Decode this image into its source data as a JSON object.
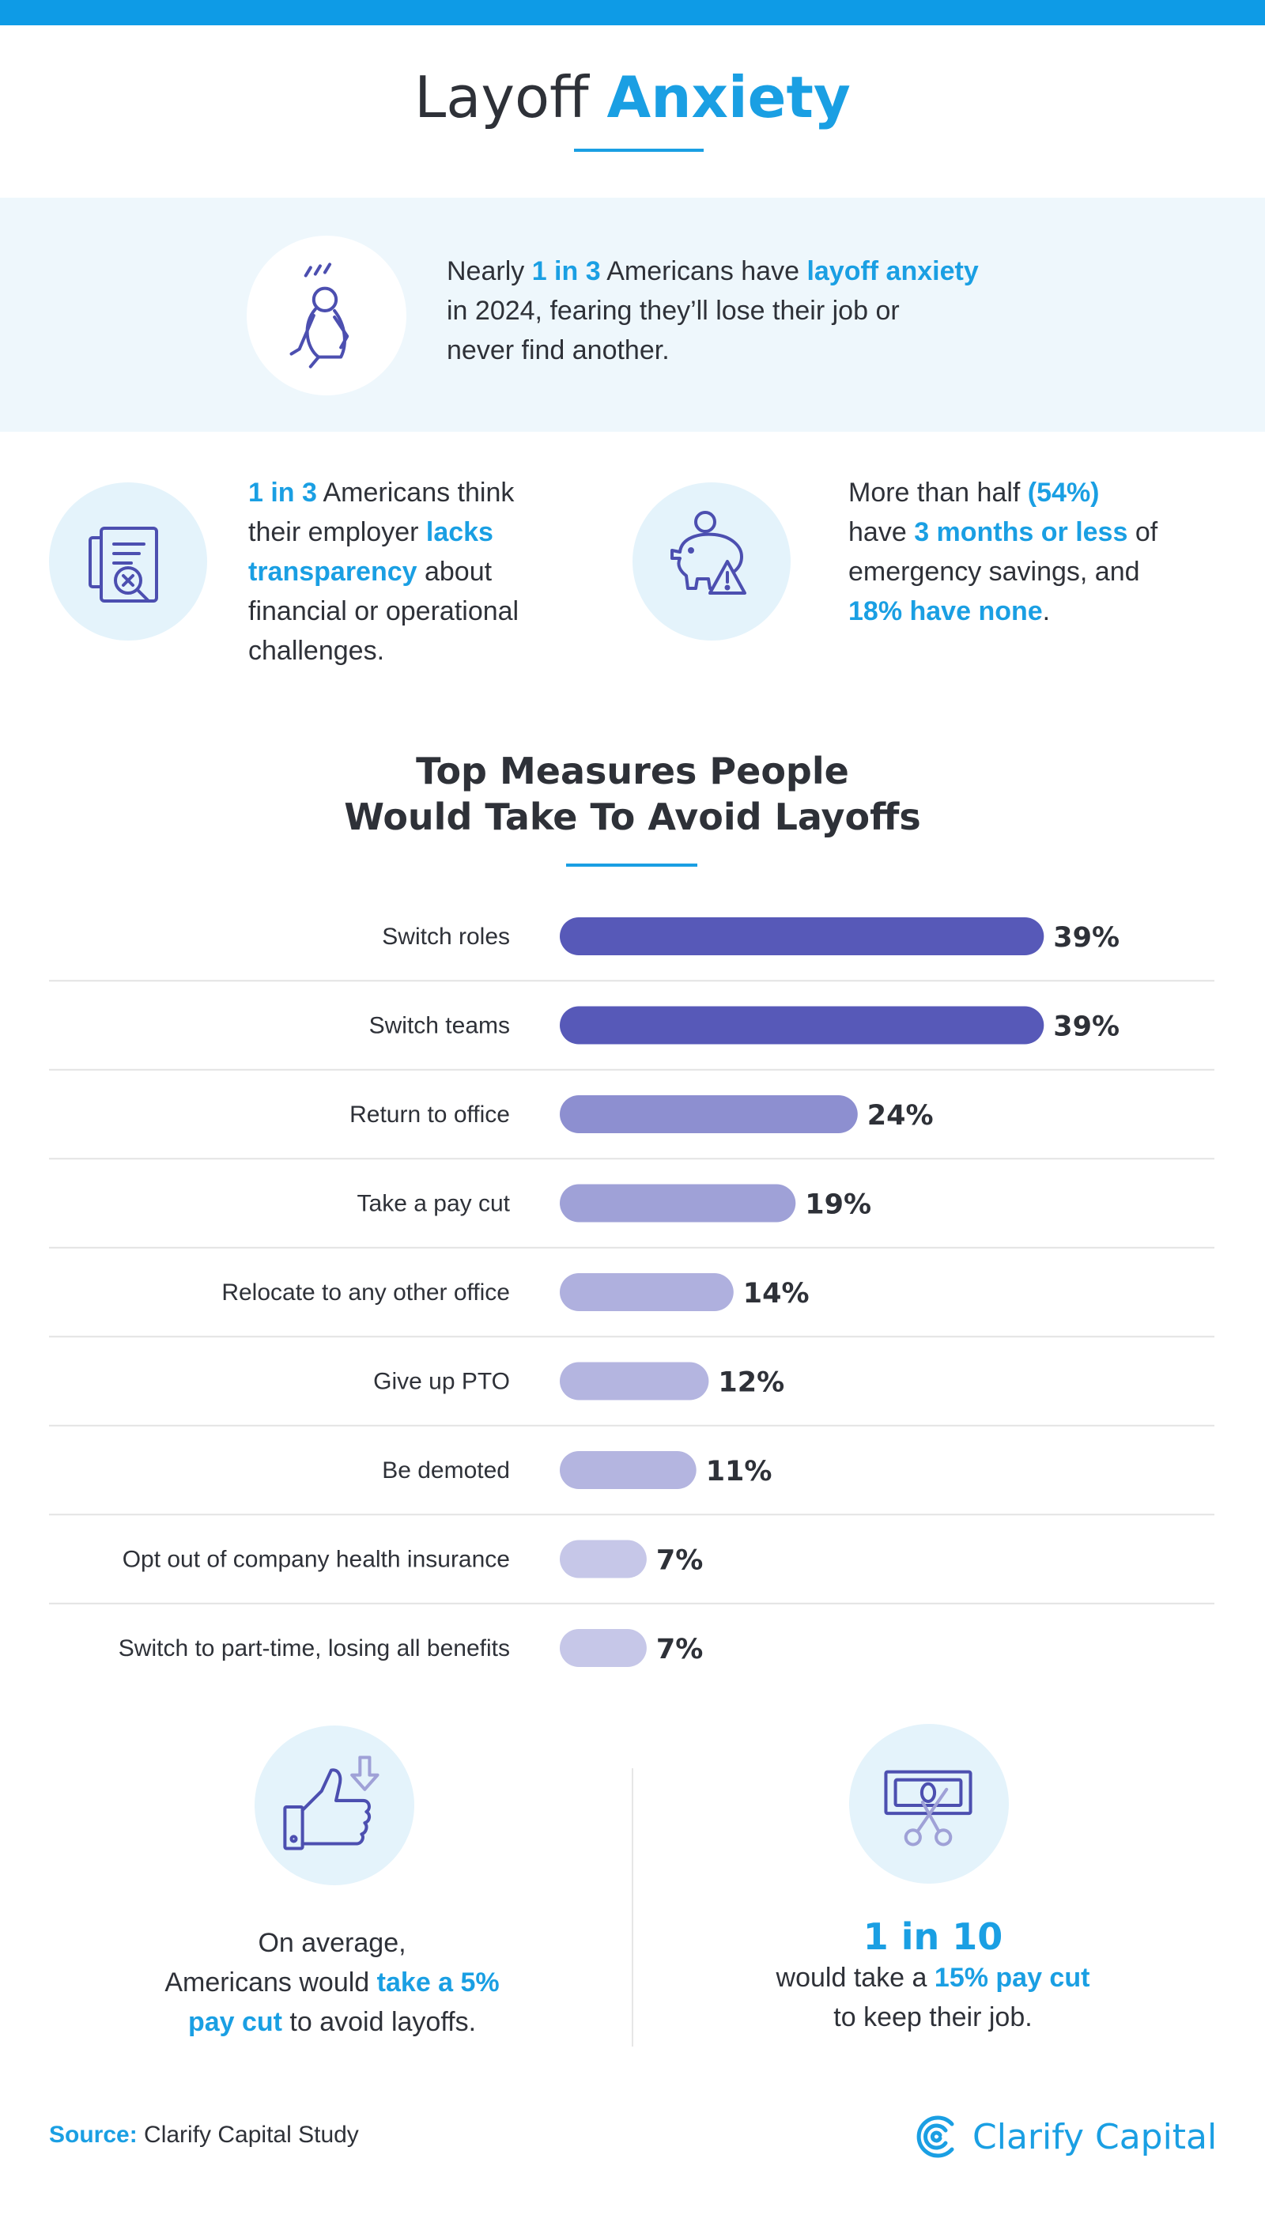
{
  "header": {
    "title_part1": "Layoff ",
    "title_part2": "Anxiety"
  },
  "intro": {
    "icon": "anxious-person-icon",
    "p1": "Nearly ",
    "h1": "1 in 3",
    "p2": " Americans have ",
    "h2": "layoff anxiety",
    "p3": "in 2024, fearing they’ll lose their job or",
    "p4": "never find another."
  },
  "stat_transparency": {
    "icon": "document-search-icon",
    "h1": "1 in 3",
    "p1": " Americans think",
    "p2": "their employer ",
    "h2": "lacks",
    "h3": "transparency",
    "p3": " about",
    "p4": "financial or operational",
    "p5": "challenges."
  },
  "stat_savings": {
    "icon": "piggy-bank-warning-icon",
    "p1": "More than half ",
    "h1": "(54%)",
    "p2": "have ",
    "h2": "3 months or less",
    "p3": " of",
    "p4": "emergency savings, and",
    "h3": "18% have none",
    "p5": "."
  },
  "chart_title": {
    "line1": "Top Measures People",
    "line2": "Would Take To Avoid Layoffs"
  },
  "chart_data": {
    "type": "bar",
    "orientation": "horizontal",
    "title": "Top Measures People Would Take To Avoid Layoffs",
    "categories": [
      "Switch roles",
      "Switch teams",
      "Return to office",
      "Take a pay cut",
      "Relocate to any other office",
      "Give up PTO",
      "Be demoted",
      "Opt out of company health insurance",
      "Switch to part-time, losing all benefits"
    ],
    "values": [
      39,
      39,
      24,
      19,
      14,
      12,
      11,
      7,
      7
    ],
    "value_labels": [
      "39%",
      "39%",
      "24%",
      "19%",
      "14%",
      "12%",
      "11%",
      "7%",
      "7%"
    ],
    "bar_colors": [
      "#5759b8",
      "#5759b8",
      "#8d8fd0",
      "#9fa1d7",
      "#afb0de",
      "#b4b5e0",
      "#b4b5e0",
      "#c6c7e8",
      "#c6c7e8"
    ],
    "xlabel": "",
    "ylabel": "",
    "grid": false,
    "legend": "none"
  },
  "footer_left": {
    "icon": "thumbs-up-down-arrow-icon",
    "line1": "On average,",
    "p2": "Americans would ",
    "h1": "take a 5%",
    "h2": "pay cut",
    "p3": " to avoid layoffs."
  },
  "footer_right": {
    "icon": "money-scissors-icon",
    "big": "1 in 10",
    "p1": "would take a ",
    "h1": "15% pay cut",
    "p2": "to keep their job."
  },
  "source": {
    "label": "Source:",
    "text": " Clarify Capital Study"
  },
  "brand": {
    "icon": "clarify-capital-logo-icon",
    "name": "Clarify Capital"
  },
  "colors": {
    "accent": "#1a9fe3",
    "top_bar": "#0e9be6",
    "band_bg": "#eef7fc",
    "icon_stroke": "#4c4fb0"
  }
}
